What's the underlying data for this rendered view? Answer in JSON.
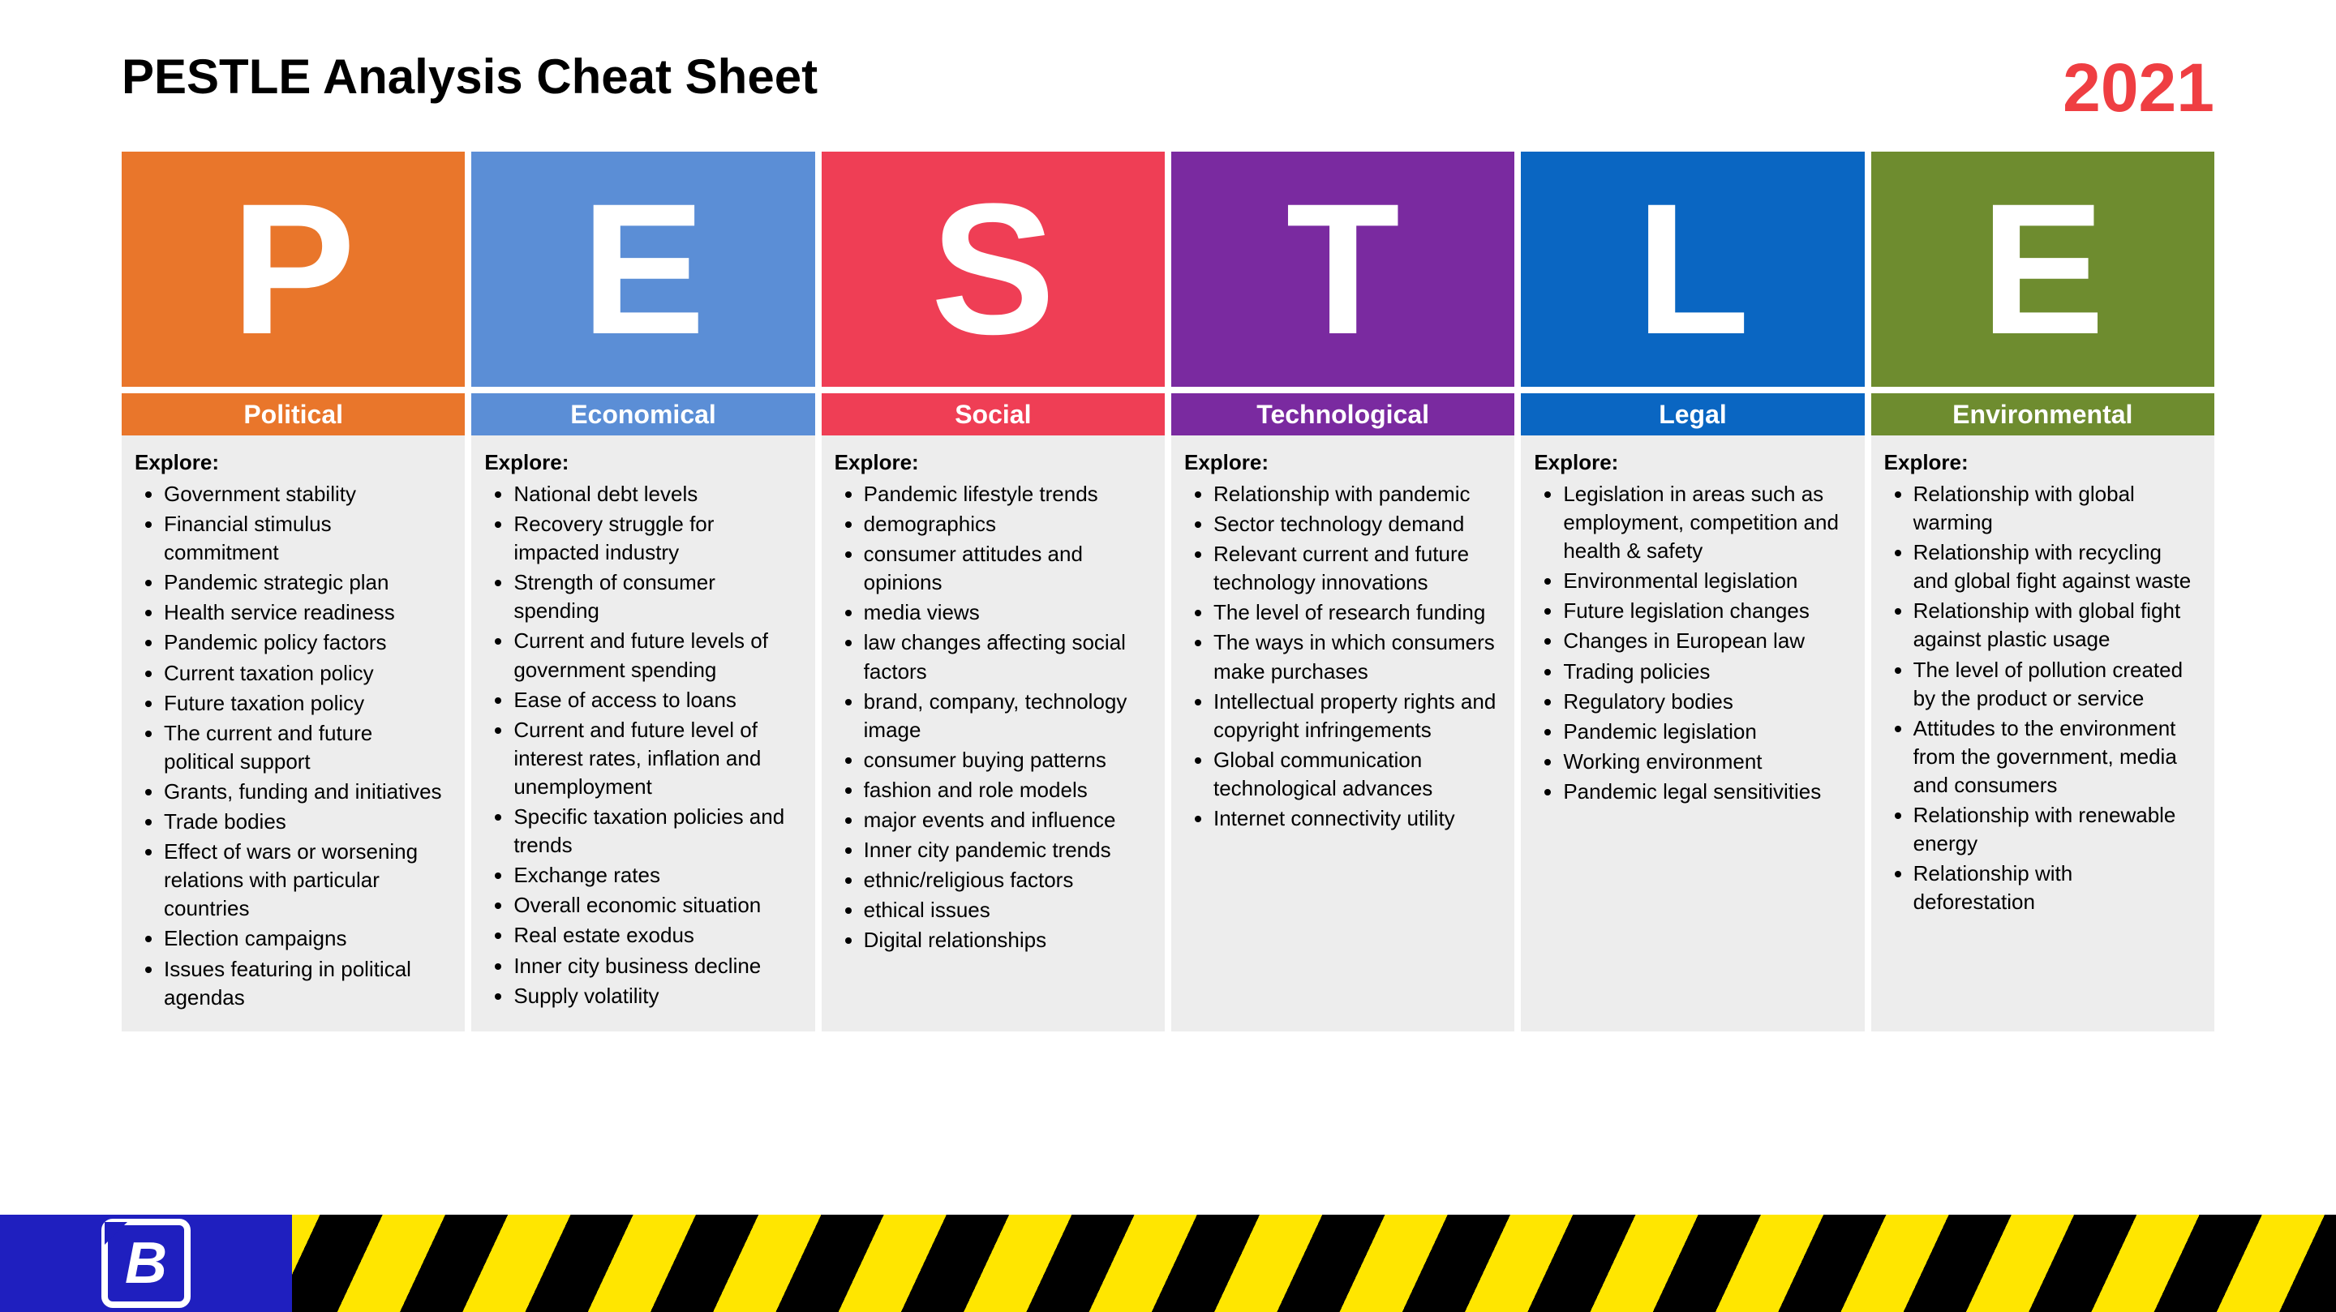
{
  "header": {
    "title": "PESTLE Analysis Cheat Sheet",
    "year": "2021",
    "year_color": "#ef3e42"
  },
  "explore_label": "Explore:",
  "columns": [
    {
      "letter": "P",
      "label": "Political",
      "color": "#e9762b",
      "items": [
        "Government stability",
        "Financial stimulus commitment",
        "Pandemic strategic plan",
        "Health service readiness",
        "Pandemic policy factors",
        "Current taxation policy",
        "Future taxation policy",
        "The current and future political support",
        "Grants, funding and initiatives",
        "Trade bodies",
        "Effect of wars or worsening relations with particular countries",
        "Election campaigns",
        "Issues featuring in political agendas"
      ]
    },
    {
      "letter": "E",
      "label": "Economical",
      "color": "#5b8ed6",
      "items": [
        "National debt levels",
        "Recovery struggle for impacted industry",
        "Strength of consumer spending",
        "Current and future levels of government spending",
        "Ease of access to loans",
        "Current and future level of interest rates, inflation and unemployment",
        "Specific taxation policies and trends",
        "Exchange rates",
        "Overall economic situation",
        "Real estate exodus",
        "Inner city business decline",
        "Supply volatility"
      ]
    },
    {
      "letter": "S",
      "label": "Social",
      "color": "#ef3e55",
      "items": [
        "Pandemic lifestyle trends",
        "demographics",
        "consumer attitudes and opinions",
        "media views",
        "law changes affecting social factors",
        "brand, company, technology image",
        "consumer buying patterns",
        "fashion and role models",
        "major events and influence",
        "Inner city pandemic trends",
        "ethnic/religious factors",
        "ethical issues",
        "Digital relationships"
      ]
    },
    {
      "letter": "T",
      "label": "Technological",
      "color": "#7a2aa0",
      "items": [
        "Relationship with pandemic",
        "Sector technology demand",
        "Relevant current and future technology innovations",
        "The level of research funding",
        "The ways in which consumers make purchases",
        "Intellectual property rights and copyright infringements",
        "Global communication technological advances",
        "Internet connectivity utility"
      ]
    },
    {
      "letter": "L",
      "label": "Legal",
      "color": "#0a66c2",
      "items": [
        "Legislation in areas such as employment, competition and health & safety",
        "Environmental legislation",
        "Future legislation changes",
        "Changes in European law",
        "Trading policies",
        "Regulatory bodies",
        "Pandemic legislation",
        "Working environment",
        "Pandemic legal sensitivities"
      ]
    },
    {
      "letter": "E",
      "label": "Environmental",
      "color": "#6e8c2f",
      "items": [
        "Relationship with global warming",
        "Relationship with recycling and global fight against waste",
        "Relationship with global fight against plastic usage",
        "The level of pollution created by the product or service",
        "Attitudes to the environment from the government, media and consumers",
        "Relationship with renewable energy",
        "Relationship with deforestation"
      ]
    }
  ],
  "footer": {
    "blue": "#1f1fbf",
    "hazard_a": "#000000",
    "hazard_b": "#ffe600",
    "logo_letter": "B"
  },
  "body_bg": "#ededed"
}
